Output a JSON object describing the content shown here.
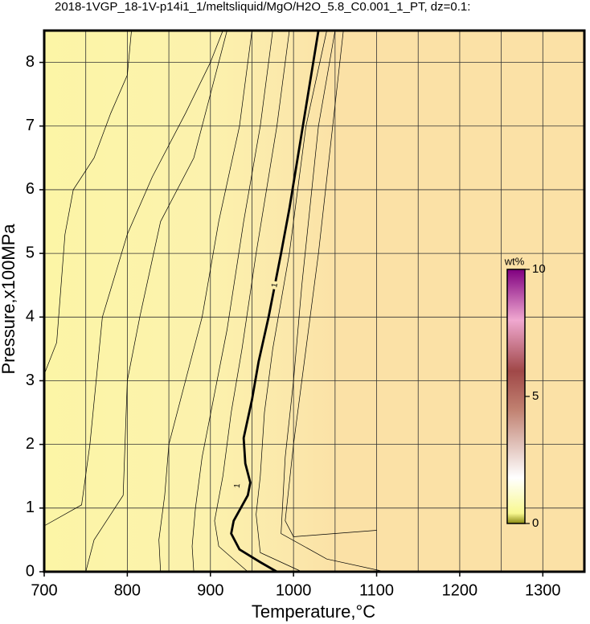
{
  "chart_data": {
    "type": "contour",
    "title": "2018-1VGP_18-1V-p14i1_1/meltsliquid/MgO/H2O_5.8_C0.001_1_PT, dz=0.1:",
    "x_label": "Temperature,°C",
    "y_label": "Pressure,x100MPa",
    "xlim": [
      700,
      1350
    ],
    "ylim": [
      0,
      8.5
    ],
    "xticks": [
      700,
      800,
      900,
      1000,
      1100,
      1200,
      1300
    ],
    "xgrid": [
      750,
      850,
      950,
      1050,
      1150,
      1250
    ],
    "yticks": [
      0,
      1,
      2,
      3,
      4,
      5,
      6,
      7,
      8
    ],
    "grid": true,
    "contours": [
      {
        "label": "1",
        "bold": true,
        "x": [
          980,
          960,
          935,
          925,
          928,
          945,
          948,
          942,
          940,
          945,
          950,
          958,
          970,
          985,
          995,
          1005,
          1015,
          1030
        ],
        "y": [
          0,
          0.15,
          0.35,
          0.6,
          0.8,
          1.2,
          1.4,
          1.7,
          2.1,
          2.4,
          2.7,
          3.3,
          4.0,
          5.0,
          5.7,
          6.5,
          7.3,
          8.5
        ]
      },
      {
        "x": [
          700,
          745,
          755,
          770,
          800,
          830,
          870,
          900,
          915
        ],
        "y": [
          0.72,
          1.05,
          2,
          4,
          5.3,
          6.2,
          7.2,
          8.0,
          8.5
        ]
      },
      {
        "x": [
          700,
          715,
          725,
          735,
          760,
          780,
          800,
          805
        ],
        "y": [
          3.1,
          3.6,
          5.3,
          6.0,
          6.5,
          7.2,
          7.8,
          8.5
        ]
      },
      {
        "x": [
          750,
          760,
          795,
          800,
          815,
          840,
          880,
          900,
          920
        ],
        "y": [
          0,
          0.5,
          1.2,
          3,
          4,
          5.5,
          6.5,
          7.5,
          8.5
        ]
      },
      {
        "x": [
          840,
          838,
          845,
          850,
          870,
          890,
          910,
          935,
          950
        ],
        "y": [
          0,
          0.5,
          1.2,
          2,
          3,
          4,
          5.5,
          7,
          8.5
        ]
      },
      {
        "x": [
          880,
          878,
          882,
          890,
          905,
          920,
          940,
          960,
          975
        ],
        "y": [
          0,
          0.4,
          1.0,
          1.8,
          2.8,
          3.8,
          5.5,
          7,
          8.5
        ]
      },
      {
        "x": [
          945,
          910,
          905,
          915,
          925,
          938,
          955,
          980,
          995
        ],
        "y": [
          0,
          0.4,
          0.8,
          1.5,
          2.5,
          3.5,
          5,
          7,
          8.5
        ]
      },
      {
        "x": [
          1010,
          960,
          955,
          960,
          965,
          975,
          995,
          1015,
          1040
        ],
        "y": [
          0,
          0.3,
          0.9,
          1.5,
          2.5,
          3.5,
          5,
          7,
          8.5
        ]
      },
      {
        "x": [
          1110,
          1040,
          985,
          990,
          1000,
          1010,
          1030,
          1050
        ],
        "y": [
          0,
          0.2,
          0.6,
          1.8,
          3,
          4.5,
          7,
          8.5
        ]
      },
      {
        "x": [
          1100,
          1000,
          990,
          1000,
          1030,
          1060
        ],
        "y": [
          0.65,
          0.55,
          0.8,
          2,
          5,
          8.5
        ]
      }
    ],
    "colorbar": {
      "label": "wt%",
      "lim": [
        0,
        10
      ],
      "ticks": [
        0,
        5,
        10
      ]
    }
  }
}
